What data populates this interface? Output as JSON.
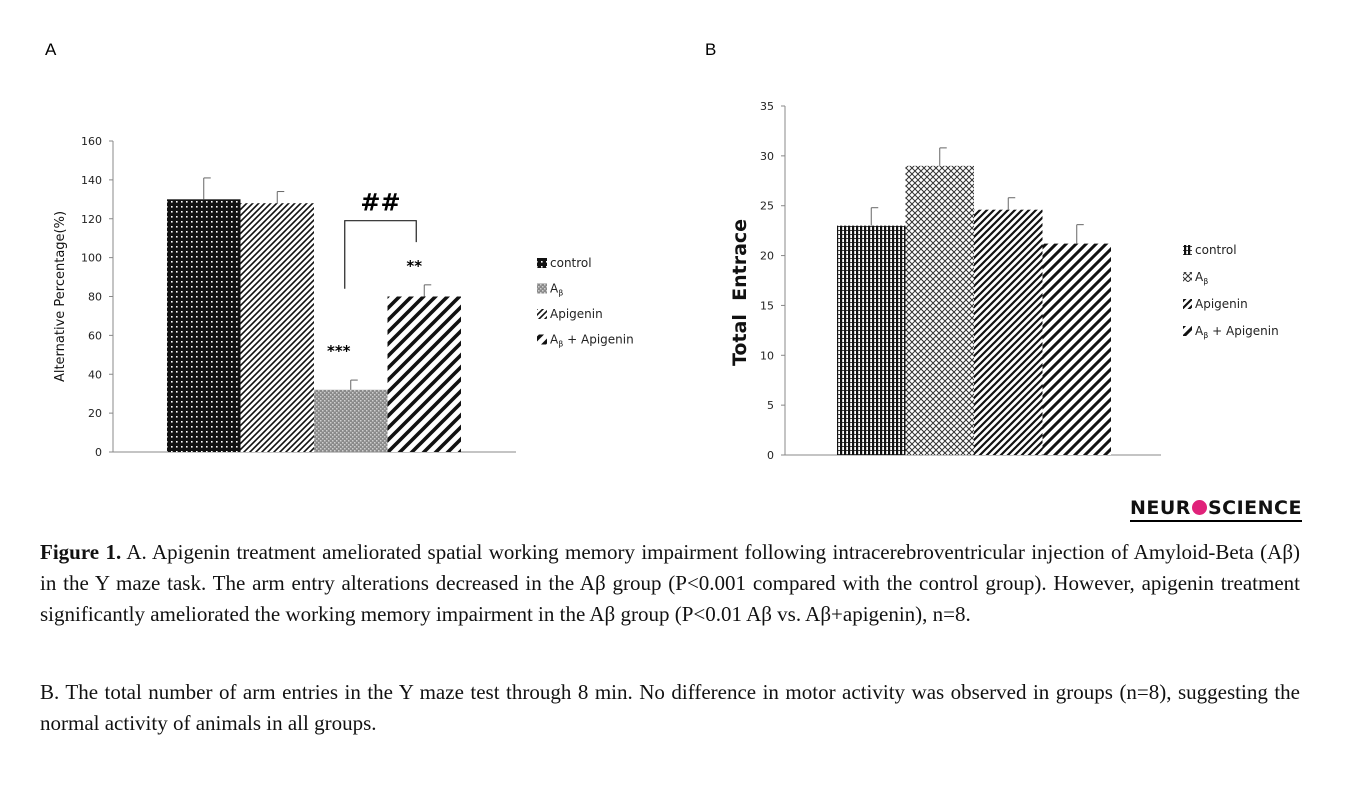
{
  "panels": {
    "a_label": "A",
    "b_label": "B"
  },
  "chart_data": [
    {
      "type": "bar",
      "panel": "A",
      "categories": [
        "control",
        "Aβ",
        "Apigenin",
        "Aβ + Apigenin"
      ],
      "values": [
        130,
        32,
        128,
        80
      ],
      "errors": [
        11,
        5,
        6,
        6
      ],
      "ylabel": "Alternative Percentage(%)",
      "ylim": [
        0,
        160
      ],
      "yticks": [
        0,
        20,
        40,
        60,
        80,
        100,
        120,
        140,
        160
      ],
      "bar_order": [
        "control",
        "Apigenin",
        "Aβ",
        "Aβ + Apigenin"
      ],
      "annotations": {
        "ab": "***",
        "ab_api": "**",
        "bracket": "##"
      },
      "legend": [
        "control",
        "Aβ",
        "Apigenin",
        "Aβ + Apigenin"
      ],
      "legend_position": "right"
    },
    {
      "type": "bar",
      "panel": "B",
      "categories": [
        "control",
        "Aβ",
        "Apigenin",
        "Aβ + Apigenin"
      ],
      "values": [
        23,
        29,
        24.6,
        21.2
      ],
      "errors": [
        1.8,
        1.8,
        1.2,
        1.9
      ],
      "ylabel": "Total  Entrace",
      "ylim": [
        0,
        35
      ],
      "yticks": [
        0,
        5,
        10,
        15,
        20,
        25,
        30,
        35
      ],
      "legend": [
        "control",
        "Aβ",
        "Apigenin",
        "Aβ + Apigenin"
      ],
      "legend_position": "right"
    }
  ],
  "logo": {
    "left": "NEUR",
    "right": "SCIENCE"
  },
  "caption_a": {
    "lead": "Figure 1.",
    "text": " A. Apigenin treatment ameliorated spatial working memory impairment following intracerebroventricular injection of Amyloid-Beta (Aβ) in the Y maze task. The arm entry alterations decreased in the Aβ group (P<0.001 compared with the control group). However, apigenin treatment significantly ameliorated the working memory impairment in the Aβ group (P<0.01 Aβ vs. Aβ+apigenin), n=8."
  },
  "caption_b": "B. The total number of arm entries in the Y maze test through 8 min. No difference in motor activity was observed in groups (n=8), suggesting the normal activity of animals in all groups."
}
